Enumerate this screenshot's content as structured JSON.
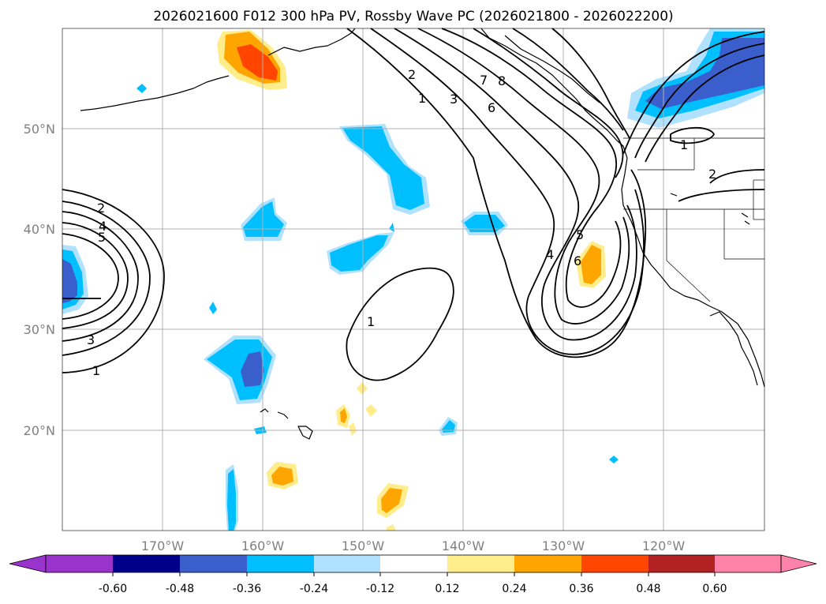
{
  "title": "2026021600 F012 300 hPa PV, Rossby Wave PC (2026021800 - 2026022200)",
  "lat_labels": [
    "50°N",
    "40°N",
    "30°N",
    "20°N"
  ],
  "lon_labels": [
    "170°W",
    "160°W",
    "150°W",
    "140°W",
    "130°W",
    "120°W"
  ],
  "colorbar": {
    "ticks": [
      "-0.60",
      "-0.48",
      "-0.36",
      "-0.24",
      "-0.12",
      "0.12",
      "0.24",
      "0.36",
      "0.48",
      "0.60"
    ],
    "colors": [
      "#9933cc",
      "#00008b",
      "#3a5fcd",
      "#00bfff",
      "#b0e2ff",
      "#ffffff",
      "#ffec8b",
      "#ffa500",
      "#ff4500",
      "#b22222",
      "#ff82ab"
    ]
  },
  "contour_labels": [
    "2",
    "4",
    "5",
    "3",
    "1",
    "1",
    "2",
    "1",
    "3",
    "7",
    "8",
    "6",
    "5",
    "4",
    "6",
    "1",
    "2"
  ]
}
